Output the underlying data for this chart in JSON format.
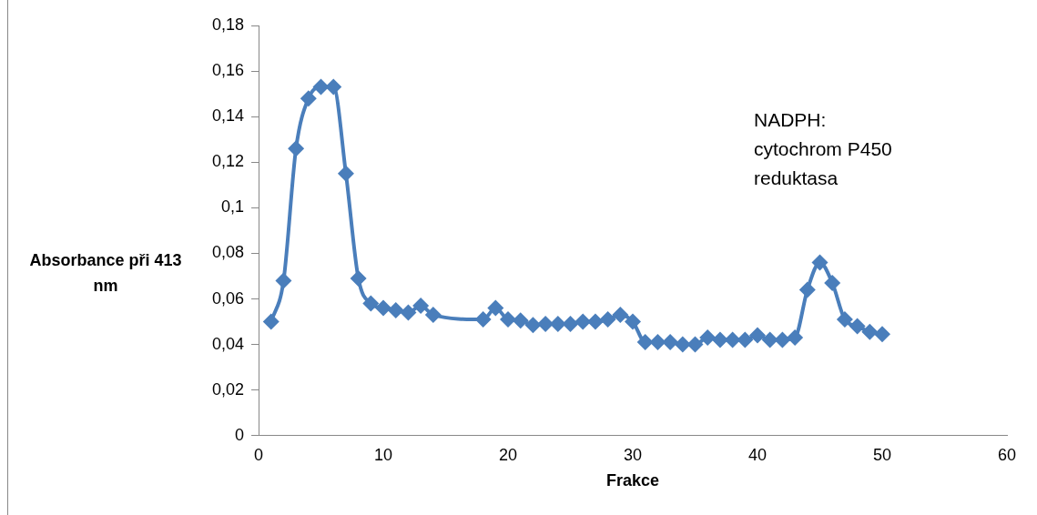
{
  "chart_data": {
    "type": "line",
    "xlabel": "Frakce",
    "ylabel": "Absorbance při 413 nm",
    "annotations": [
      "NADPH:\ncytochrom P450\nreduktasa"
    ],
    "xlim": [
      0,
      60
    ],
    "xticks": [
      0,
      10,
      20,
      30,
      40,
      50,
      60
    ],
    "ylim": [
      0,
      0.18
    ],
    "yticks": [
      {
        "value": 0,
        "label": "0"
      },
      {
        "value": 0.02,
        "label": "0,02"
      },
      {
        "value": 0.04,
        "label": "0,04"
      },
      {
        "value": 0.06,
        "label": "0,06"
      },
      {
        "value": 0.08,
        "label": "0,08"
      },
      {
        "value": 0.1,
        "label": "0,1"
      },
      {
        "value": 0.12,
        "label": "0,12"
      },
      {
        "value": 0.14,
        "label": "0,14"
      },
      {
        "value": 0.16,
        "label": "0,16"
      },
      {
        "value": 0.18,
        "label": "0,18"
      }
    ],
    "grid": false,
    "legend": false,
    "marker": "diamond",
    "line_style": "solid",
    "series": [
      {
        "color": "#4a7ebb",
        "x": [
          1,
          2,
          3,
          4,
          5,
          6,
          7,
          8,
          9,
          10,
          11,
          12,
          13,
          14,
          18,
          19,
          20,
          21,
          22,
          23,
          24,
          25,
          26,
          27,
          28,
          29,
          30,
          31,
          32,
          33,
          34,
          35,
          36,
          37,
          38,
          39,
          40,
          41,
          42,
          43,
          44,
          45,
          46,
          47,
          48,
          49,
          50
        ],
        "values": [
          0.05,
          0.068,
          0.126,
          0.148,
          0.153,
          0.153,
          0.115,
          0.069,
          0.058,
          0.056,
          0.055,
          0.054,
          0.057,
          0.053,
          0.051,
          0.056,
          0.051,
          0.0505,
          0.0485,
          0.049,
          0.049,
          0.049,
          0.05,
          0.05,
          0.051,
          0.053,
          0.05,
          0.041,
          0.041,
          0.041,
          0.04,
          0.04,
          0.043,
          0.042,
          0.042,
          0.042,
          0.044,
          0.042,
          0.042,
          0.043,
          0.064,
          0.076,
          0.067,
          0.051,
          0.048,
          0.0455,
          0.0445
        ]
      }
    ]
  }
}
